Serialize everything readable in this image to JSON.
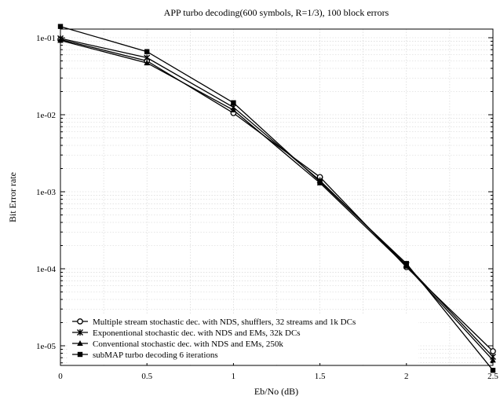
{
  "chart_data": {
    "type": "line",
    "title": "APP turbo decoding(600 symbols, R=1/3), 100 block errors",
    "xlabel": "Eb/No (dB)",
    "ylabel": "Bit Error rate",
    "xlim": [
      0,
      2.5
    ],
    "ylim": [
      5e-06,
      0.2
    ],
    "yscale": "log",
    "grid": true,
    "legend_position": "bottom-left",
    "x_ticks": [
      {
        "value": 0,
        "label": "0"
      },
      {
        "value": 0.5,
        "label": "0.5"
      },
      {
        "value": 1,
        "label": "1"
      },
      {
        "value": 1.5,
        "label": "1.5"
      },
      {
        "value": 2,
        "label": "2"
      },
      {
        "value": 2.5,
        "label": "2.5"
      }
    ],
    "y_ticks": [
      {
        "value": 0.1,
        "label": "1e-01"
      },
      {
        "value": 0.01,
        "label": "1e-02"
      },
      {
        "value": 0.001,
        "label": "1e-03"
      },
      {
        "value": 0.0001,
        "label": "1e-04"
      },
      {
        "value": 1e-05,
        "label": "1e-05"
      }
    ],
    "series": [
      {
        "name": "Multiple stream stochastic dec. with NDS, shufflers, 32 streams and 1k DCs",
        "marker": "circle",
        "x": [
          0,
          0.5,
          1,
          1.5,
          2,
          2.5
        ],
        "y": [
          0.095,
          0.05,
          0.0105,
          0.00155,
          0.000105,
          8.5e-06
        ]
      },
      {
        "name": "Exponentional stochastic dec. with NDS and EMs, 32k DCs",
        "marker": "star",
        "x": [
          0,
          0.5,
          1,
          1.5,
          2,
          2.5
        ],
        "y": [
          0.098,
          0.055,
          0.0125,
          0.0014,
          0.000112,
          7.2e-06
        ]
      },
      {
        "name": "Conventional stochastic dec. with NDS and EMs, 250k",
        "marker": "triangle",
        "x": [
          0,
          0.5,
          1,
          1.5,
          2,
          2.5
        ],
        "y": [
          0.092,
          0.047,
          0.0115,
          0.0013,
          0.000108,
          6.5e-06
        ]
      },
      {
        "name": "subMAP turbo decoding 6 iterations",
        "marker": "square",
        "x": [
          0,
          0.5,
          1,
          1.5,
          2,
          2.5
        ],
        "y": [
          0.14,
          0.066,
          0.0143,
          0.00135,
          0.000117,
          4.8e-06
        ]
      }
    ]
  }
}
